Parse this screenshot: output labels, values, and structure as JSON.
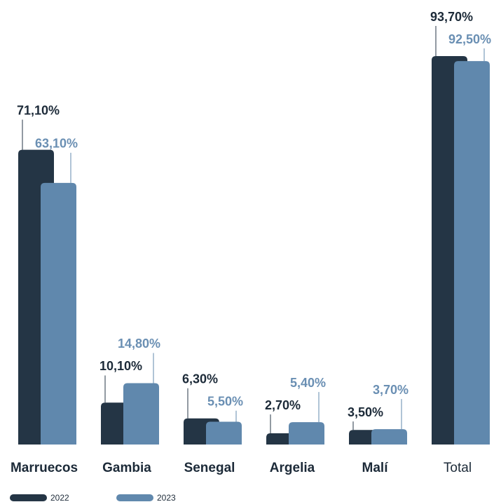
{
  "chart_data": {
    "type": "bar",
    "categories": [
      "Marruecos",
      "Gambia",
      "Senegal",
      "Argelia",
      "Malí",
      "Total"
    ],
    "series": [
      {
        "name": "2022",
        "color": "#243545",
        "values": [
          71.1,
          10.1,
          6.3,
          2.7,
          3.5,
          93.7
        ],
        "value_labels": [
          "71,10%",
          "10,10%",
          "6,30%",
          "2,70%",
          "3,50%",
          "93,70%"
        ]
      },
      {
        "name": "2023",
        "color": "#6088ad",
        "values": [
          63.1,
          14.8,
          5.5,
          5.4,
          3.7,
          92.5
        ],
        "value_labels": [
          "63,10%",
          "14,80%",
          "5,50%",
          "5,40%",
          "3,70%",
          "92,50%"
        ]
      }
    ]
  }
}
